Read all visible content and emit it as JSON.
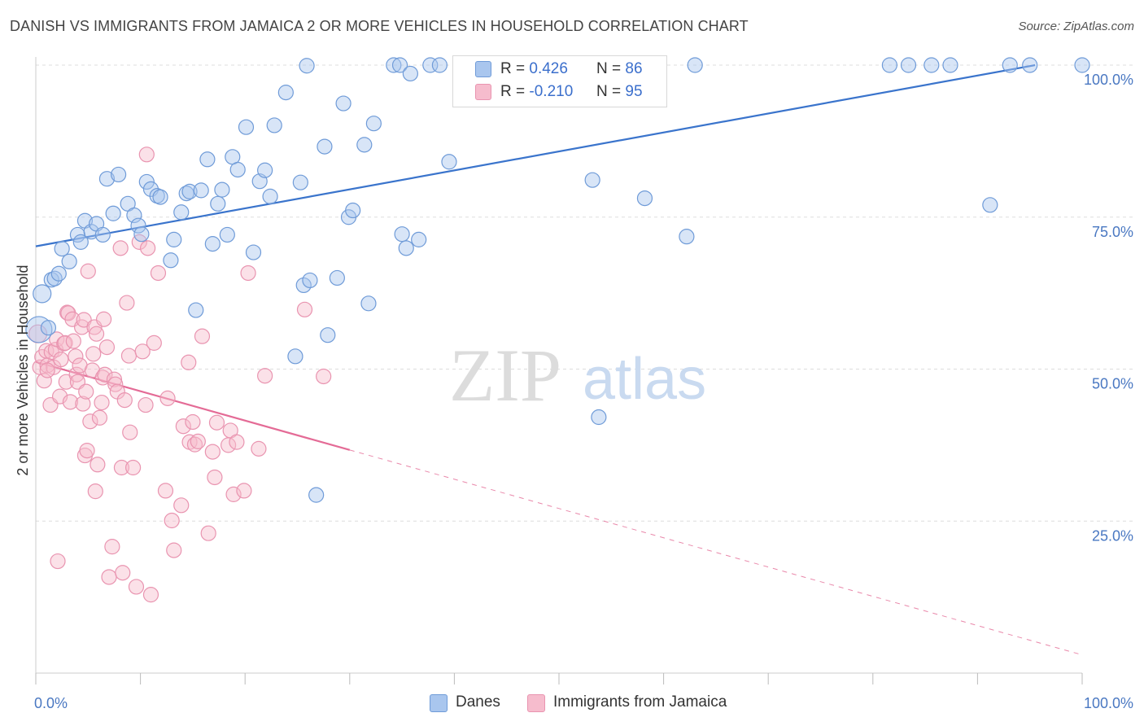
{
  "header": {
    "title": "DANISH VS IMMIGRANTS FROM JAMAICA 2 OR MORE VEHICLES IN HOUSEHOLD CORRELATION CHART",
    "source": "Source: ZipAtlas.com"
  },
  "watermark": {
    "zip": "ZIP",
    "atlas": "atlas"
  },
  "legend": {
    "danes": {
      "r_label": "R =",
      "r_value": "0.426",
      "n_label": "N =",
      "n_value": "86"
    },
    "jamaica": {
      "r_label": "R =",
      "r_value": "-0.210",
      "n_label": "N =",
      "n_value": "95"
    }
  },
  "bottom_legend": {
    "danes": "Danes",
    "jamaica": "Immigrants from Jamaica"
  },
  "colors": {
    "danes_fill": "#a9c6ee",
    "danes_stroke": "#6f9bd8",
    "danes_line": "#3a74cc",
    "jamaica_fill": "#f6bccd",
    "jamaica_stroke": "#e994b0",
    "jamaica_line": "#e46b96",
    "tick_text": "#4a78c2",
    "grid": "#dddddd"
  },
  "chart_data": {
    "type": "scatter",
    "title": "DANISH VS IMMIGRANTS FROM JAMAICA 2 OR MORE VEHICLES IN HOUSEHOLD CORRELATION CHART",
    "xlabel": "",
    "ylabel": "2 or more Vehicles in Household",
    "xlim": [
      0,
      100
    ],
    "ylim": [
      0,
      102
    ],
    "x_tick_labels": [
      "0.0%",
      "100.0%"
    ],
    "y_ticks": [
      25,
      50,
      75,
      100
    ],
    "y_tick_labels": [
      "25.0%",
      "50.0%",
      "75.0%",
      "100.0%"
    ],
    "grid": true,
    "legend_position": "top-center",
    "series": [
      {
        "name": "Danes",
        "r": 0.426,
        "n": 86,
        "points": [
          [
            0.3,
            56.5
          ],
          [
            0.6,
            62.4
          ],
          [
            1.5,
            64.7
          ],
          [
            1.8,
            64.9
          ],
          [
            2.2,
            65.7
          ],
          [
            2.5,
            69.8
          ],
          [
            3.2,
            67.7
          ],
          [
            4.0,
            72.1
          ],
          [
            4.3,
            70.9
          ],
          [
            4.7,
            74.4
          ],
          [
            5.3,
            72.6
          ],
          [
            5.8,
            73.9
          ],
          [
            6.4,
            72.1
          ],
          [
            6.8,
            81.3
          ],
          [
            7.4,
            75.6
          ],
          [
            7.9,
            82.0
          ],
          [
            8.8,
            77.2
          ],
          [
            9.4,
            75.3
          ],
          [
            9.8,
            73.6
          ],
          [
            10.1,
            72.2
          ],
          [
            10.6,
            80.8
          ],
          [
            11.0,
            79.6
          ],
          [
            11.6,
            78.5
          ],
          [
            11.9,
            78.3
          ],
          [
            12.9,
            67.9
          ],
          [
            13.2,
            71.3
          ],
          [
            13.9,
            75.8
          ],
          [
            14.4,
            78.9
          ],
          [
            14.7,
            79.2
          ],
          [
            15.3,
            59.7
          ],
          [
            15.8,
            79.4
          ],
          [
            16.4,
            84.5
          ],
          [
            16.9,
            70.6
          ],
          [
            17.4,
            77.2
          ],
          [
            17.8,
            79.5
          ],
          [
            18.3,
            72.1
          ],
          [
            18.8,
            84.9
          ],
          [
            19.3,
            82.8
          ],
          [
            20.1,
            89.8
          ],
          [
            20.8,
            69.2
          ],
          [
            21.4,
            80.9
          ],
          [
            21.9,
            82.7
          ],
          [
            22.4,
            78.4
          ],
          [
            22.8,
            90.1
          ],
          [
            23.9,
            95.5
          ],
          [
            24.8,
            52.1
          ],
          [
            25.3,
            80.7
          ],
          [
            25.6,
            63.8
          ],
          [
            25.9,
            99.9
          ],
          [
            26.2,
            64.6
          ],
          [
            26.8,
            29.3
          ],
          [
            27.6,
            86.6
          ],
          [
            27.9,
            55.6
          ],
          [
            28.8,
            65.0
          ],
          [
            29.4,
            93.7
          ],
          [
            29.9,
            75.0
          ],
          [
            30.3,
            76.1
          ],
          [
            31.4,
            86.9
          ],
          [
            31.8,
            60.8
          ],
          [
            32.3,
            90.4
          ],
          [
            34.2,
            100.0
          ],
          [
            34.8,
            100.0
          ],
          [
            35.0,
            72.2
          ],
          [
            35.4,
            69.9
          ],
          [
            35.8,
            98.6
          ],
          [
            36.6,
            71.3
          ],
          [
            37.7,
            100.0
          ],
          [
            38.6,
            100.0
          ],
          [
            39.5,
            84.1
          ],
          [
            49.4,
            100.0
          ],
          [
            49.7,
            100.0
          ],
          [
            53.2,
            81.1
          ],
          [
            53.8,
            42.1
          ],
          [
            58.2,
            78.1
          ],
          [
            58.6,
            100.0
          ],
          [
            62.2,
            71.8
          ],
          [
            63.0,
            100.0
          ],
          [
            81.6,
            100.0
          ],
          [
            83.4,
            100.0
          ],
          [
            85.6,
            100.0
          ],
          [
            87.4,
            100.0
          ],
          [
            91.2,
            77.0
          ],
          [
            93.1,
            100.0
          ],
          [
            95.0,
            100.0
          ],
          [
            100.0,
            100.0
          ],
          [
            1.2,
            56.8
          ]
        ],
        "trend": {
          "x": [
            0,
            95.5
          ],
          "y": [
            70.2,
            100.0
          ]
        }
      },
      {
        "name": "Immigrants from Jamaica",
        "r": -0.21,
        "n": 95,
        "points": [
          [
            0.2,
            55.8
          ],
          [
            0.4,
            50.3
          ],
          [
            0.6,
            52.0
          ],
          [
            0.8,
            48.1
          ],
          [
            1.0,
            53.0
          ],
          [
            1.1,
            50.6
          ],
          [
            1.4,
            44.1
          ],
          [
            1.5,
            52.8
          ],
          [
            1.7,
            50.3
          ],
          [
            1.9,
            53.2
          ],
          [
            2.0,
            54.9
          ],
          [
            2.1,
            18.4
          ],
          [
            2.3,
            45.5
          ],
          [
            2.4,
            51.6
          ],
          [
            2.7,
            54.2
          ],
          [
            2.8,
            54.3
          ],
          [
            2.9,
            47.9
          ],
          [
            3.0,
            59.3
          ],
          [
            3.1,
            59.2
          ],
          [
            3.3,
            44.6
          ],
          [
            3.5,
            58.2
          ],
          [
            3.6,
            54.6
          ],
          [
            3.8,
            52.1
          ],
          [
            3.9,
            49.1
          ],
          [
            4.0,
            47.9
          ],
          [
            4.2,
            50.6
          ],
          [
            4.4,
            56.9
          ],
          [
            4.5,
            44.3
          ],
          [
            4.6,
            58.1
          ],
          [
            4.7,
            35.8
          ],
          [
            4.8,
            46.3
          ],
          [
            4.9,
            36.6
          ],
          [
            5.0,
            66.1
          ],
          [
            5.2,
            41.4
          ],
          [
            5.4,
            49.8
          ],
          [
            5.5,
            52.5
          ],
          [
            5.6,
            56.9
          ],
          [
            5.7,
            29.9
          ],
          [
            5.8,
            55.8
          ],
          [
            5.9,
            34.3
          ],
          [
            6.1,
            42.0
          ],
          [
            6.3,
            44.5
          ],
          [
            6.4,
            48.6
          ],
          [
            6.5,
            58.2
          ],
          [
            6.6,
            49.1
          ],
          [
            6.8,
            53.6
          ],
          [
            7.0,
            15.8
          ],
          [
            7.3,
            20.8
          ],
          [
            7.5,
            48.3
          ],
          [
            7.6,
            47.5
          ],
          [
            7.8,
            46.3
          ],
          [
            8.1,
            69.9
          ],
          [
            8.2,
            33.8
          ],
          [
            8.5,
            44.9
          ],
          [
            8.7,
            60.9
          ],
          [
            8.9,
            52.2
          ],
          [
            9.0,
            39.6
          ],
          [
            9.3,
            33.8
          ],
          [
            9.6,
            14.2
          ],
          [
            9.9,
            70.9
          ],
          [
            10.2,
            52.9
          ],
          [
            10.5,
            44.1
          ],
          [
            10.6,
            85.3
          ],
          [
            10.7,
            69.9
          ],
          [
            11.0,
            12.9
          ],
          [
            11.3,
            54.3
          ],
          [
            11.7,
            65.8
          ],
          [
            12.4,
            30.0
          ],
          [
            12.6,
            45.2
          ],
          [
            13.0,
            25.1
          ],
          [
            13.2,
            20.2
          ],
          [
            13.9,
            27.6
          ],
          [
            14.1,
            40.6
          ],
          [
            14.6,
            51.1
          ],
          [
            14.7,
            38.0
          ],
          [
            15.0,
            41.3
          ],
          [
            15.2,
            37.6
          ],
          [
            15.5,
            38.1
          ],
          [
            15.9,
            55.4
          ],
          [
            16.5,
            23.0
          ],
          [
            17.1,
            32.2
          ],
          [
            17.3,
            41.2
          ],
          [
            18.4,
            37.5
          ],
          [
            18.6,
            39.9
          ],
          [
            18.9,
            29.4
          ],
          [
            19.2,
            38.0
          ],
          [
            19.9,
            30.0
          ],
          [
            20.3,
            65.8
          ],
          [
            21.3,
            36.9
          ],
          [
            21.9,
            48.9
          ],
          [
            25.7,
            59.8
          ],
          [
            27.5,
            48.8
          ],
          [
            8.3,
            16.5
          ],
          [
            1.1,
            49.8
          ],
          [
            16.9,
            36.4
          ]
        ],
        "trend": {
          "x": [
            0,
            30
          ],
          "y": [
            51.2,
            36.7
          ]
        },
        "trend_dashed": {
          "x": [
            30,
            100
          ],
          "y": [
            36.7,
            3.0
          ]
        }
      }
    ]
  }
}
